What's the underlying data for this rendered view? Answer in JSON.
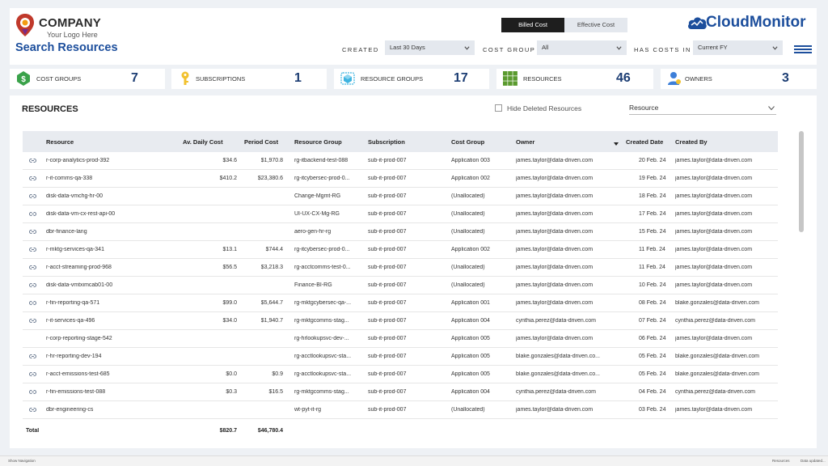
{
  "header": {
    "logo_name": "COMPANY",
    "logo_tagline": "Your Logo Here",
    "page_title": "Search Resources",
    "toggle": {
      "active": "Billed Cost",
      "inactive": "Effective Cost"
    },
    "brand": "CloudMonitor",
    "filters": {
      "created_label": "CREATED",
      "created_value": "Last 30 Days",
      "cost_group_label": "COST GROUP",
      "cost_group_value": "All",
      "has_costs_label": "HAS COSTS IN",
      "has_costs_value": "Current FY"
    }
  },
  "kpis": [
    {
      "label": "COST GROUPS",
      "value": "7",
      "icon": "dollar-icon",
      "color": "#3aa24a"
    },
    {
      "label": "SUBSCRIPTIONS",
      "value": "1",
      "icon": "key-icon",
      "color": "#f2c12e"
    },
    {
      "label": "RESOURCE GROUPS",
      "value": "17",
      "icon": "cube-icon",
      "color": "#3fb4e0"
    },
    {
      "label": "RESOURCES",
      "value": "46",
      "icon": "grid-icon",
      "color": "#5a9a2e"
    },
    {
      "label": "OWNERS",
      "value": "3",
      "icon": "user-icon",
      "color": "#3d7fd8"
    }
  ],
  "resources": {
    "title": "RESOURCES",
    "hide_deleted_label": "Hide Deleted Resources",
    "select_placeholder": "Resource",
    "columns": [
      "Resource",
      "Av. Daily Cost",
      "Period Cost",
      "Resource Group",
      "Subscription",
      "Cost Group",
      "Owner",
      "Created Date",
      "Created By"
    ],
    "rows": [
      [
        "r-corp-analytics-prod-392",
        "$34.6",
        "$1,970.8",
        "rg-itbackend-test-088",
        "sub-it-prod-007",
        "Application 003",
        "james.taylor@data-driven.com",
        "20 Feb. 24",
        "james.taylor@data-driven.com",
        true
      ],
      [
        "r-it-comms-qa-338",
        "$410.2",
        "$23,380.6",
        "rg-itcybersec-prod-0...",
        "sub-it-prod-007",
        "Application 002",
        "james.taylor@data-driven.com",
        "19 Feb. 24",
        "james.taylor@data-driven.com",
        true
      ],
      [
        "disk-data-vmchg-hr-00",
        "",
        "",
        "Change-Mgmt-RG",
        "sub-it-prod-007",
        "(Unallocated)",
        "james.taylor@data-driven.com",
        "18 Feb. 24",
        "james.taylor@data-driven.com",
        true
      ],
      [
        "disk-data-vm-cx-rest-api-00",
        "",
        "",
        "UI-UX-CX-Mg-RG",
        "sub-it-prod-007",
        "(Unallocated)",
        "james.taylor@data-driven.com",
        "17 Feb. 24",
        "james.taylor@data-driven.com",
        true
      ],
      [
        "dbr-finance-lang",
        "",
        "",
        "aero-gen-hr-rg",
        "sub-it-prod-007",
        "(Unallocated)",
        "james.taylor@data-driven.com",
        "15 Feb. 24",
        "james.taylor@data-driven.com",
        true
      ],
      [
        "r-mktg-services-qa-341",
        "$13.1",
        "$744.4",
        "rg-itcybersec-prod-0...",
        "sub-it-prod-007",
        "Application 002",
        "james.taylor@data-driven.com",
        "11 Feb. 24",
        "james.taylor@data-driven.com",
        true
      ],
      [
        "r-acct-streaming-prod-968",
        "$56.5",
        "$3,218.3",
        "rg-acctcomms-test-0...",
        "sub-it-prod-007",
        "(Unallocated)",
        "james.taylor@data-driven.com",
        "11 Feb. 24",
        "james.taylor@data-driven.com",
        true
      ],
      [
        "disk-data-vmtximcab01-00",
        "",
        "",
        "Finance-BI-RG",
        "sub-it-prod-007",
        "(Unallocated)",
        "james.taylor@data-driven.com",
        "10 Feb. 24",
        "james.taylor@data-driven.com",
        true
      ],
      [
        "r-fin-reporting-qa-571",
        "$99.0",
        "$5,644.7",
        "rg-mktgcybersec-qa-...",
        "sub-it-prod-007",
        "Application 001",
        "james.taylor@data-driven.com",
        "08 Feb. 24",
        "blake.gonzales@data-driven.com",
        true
      ],
      [
        "r-it-services-qa-496",
        "$34.0",
        "$1,940.7",
        "rg-mktgcomms-stag...",
        "sub-it-prod-007",
        "Application 004",
        "cynthia.perez@data-driven.com",
        "07 Feb. 24",
        "cynthia.perez@data-driven.com",
        true
      ],
      [
        "r-corp-reporting-stage-542",
        "",
        "",
        "rg-hrlookupsvc-dev-...",
        "sub-it-prod-007",
        "Application 005",
        "james.taylor@data-driven.com",
        "06 Feb. 24",
        "james.taylor@data-driven.com",
        false
      ],
      [
        "r-hr-reporting-dev-194",
        "",
        "",
        "rg-acctlookupsvc-sta...",
        "sub-it-prod-007",
        "Application 005",
        "blake.gonzales@data-driven.co...",
        "05 Feb. 24",
        "blake.gonzales@data-driven.com",
        true
      ],
      [
        "r-acct-emissions-test-685",
        "$0.0",
        "$0.9",
        "rg-acctlookupsvc-sta...",
        "sub-it-prod-007",
        "Application 005",
        "blake.gonzales@data-driven.co...",
        "05 Feb. 24",
        "blake.gonzales@data-driven.com",
        true
      ],
      [
        "r-fin-emissions-test-088",
        "$0.3",
        "$16.5",
        "rg-mktgcomms-stag...",
        "sub-it-prod-007",
        "Application 004",
        "cynthia.perez@data-driven.com",
        "04 Feb. 24",
        "cynthia.perez@data-driven.com",
        true
      ],
      [
        "dbr-engineering-cs",
        "",
        "",
        "wt-pyt-it-rg",
        "sub-it-prod-007",
        "(Unallocated)",
        "james.taylor@data-driven.com",
        "03 Feb. 24",
        "james.taylor@data-driven.com",
        true
      ]
    ],
    "total": {
      "label": "Total",
      "daily": "$820.7",
      "period": "$46,780.4"
    }
  },
  "statusbar": {
    "nav": "Show Navigation",
    "page": "Resources",
    "data": "Data updated..."
  }
}
